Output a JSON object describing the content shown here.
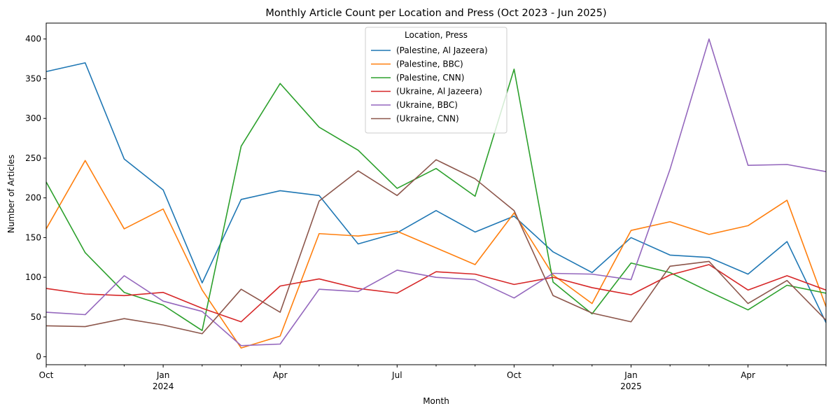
{
  "chart_data": {
    "type": "line",
    "title": "Monthly Article Count per Location and Press (Oct 2023 - Jun 2025)",
    "xlabel": "Month",
    "ylabel": "Number of Articles",
    "ylim": [
      -10,
      420
    ],
    "yticks": [
      0,
      50,
      100,
      150,
      200,
      250,
      300,
      350,
      400
    ],
    "x": [
      "2023-10",
      "2023-11",
      "2023-12",
      "2024-01",
      "2024-02",
      "2024-03",
      "2024-04",
      "2024-05",
      "2024-06",
      "2024-07",
      "2024-08",
      "2024-09",
      "2024-10",
      "2024-11",
      "2024-12",
      "2025-01",
      "2025-02",
      "2025-03",
      "2025-04",
      "2025-05",
      "2025-06"
    ],
    "xtick_labels": [
      {
        "x": "2023-10",
        "label": "Oct",
        "sub": ""
      },
      {
        "x": "2024-01",
        "label": "Jan",
        "sub": "2024"
      },
      {
        "x": "2024-04",
        "label": "Apr",
        "sub": ""
      },
      {
        "x": "2024-07",
        "label": "Jul",
        "sub": ""
      },
      {
        "x": "2024-10",
        "label": "Oct",
        "sub": ""
      },
      {
        "x": "2025-01",
        "label": "Jan",
        "sub": "2025"
      },
      {
        "x": "2025-04",
        "label": "Apr",
        "sub": ""
      }
    ],
    "legend": {
      "title": "Location, Press",
      "placement": "top-center"
    },
    "grid": false,
    "series": [
      {
        "name": "(Palestine, Al Jazeera)",
        "color": "#1f77b4",
        "values": [
          359,
          370,
          249,
          210,
          93,
          198,
          209,
          203,
          142,
          156,
          184,
          157,
          177,
          132,
          106,
          150,
          128,
          125,
          104,
          145,
          43
        ]
      },
      {
        "name": "(Palestine, BBC)",
        "color": "#ff7f0e",
        "values": [
          161,
          247,
          161,
          186,
          84,
          11,
          26,
          155,
          152,
          158,
          137,
          116,
          181,
          103,
          67,
          159,
          170,
          154,
          165,
          197,
          63
        ]
      },
      {
        "name": "(Palestine, CNN)",
        "color": "#2ca02c",
        "values": [
          220,
          131,
          81,
          65,
          33,
          265,
          344,
          289,
          260,
          212,
          237,
          202,
          362,
          94,
          54,
          118,
          106,
          82,
          59,
          90,
          80
        ]
      },
      {
        "name": "(Ukraine, Al Jazeera)",
        "color": "#d62728",
        "values": [
          86,
          79,
          77,
          81,
          61,
          44,
          89,
          98,
          86,
          80,
          107,
          104,
          91,
          100,
          87,
          78,
          103,
          116,
          84,
          102,
          84
        ]
      },
      {
        "name": "(Ukraine, BBC)",
        "color": "#9467bd",
        "values": [
          56,
          53,
          102,
          70,
          57,
          14,
          16,
          85,
          82,
          109,
          100,
          97,
          74,
          105,
          104,
          97,
          236,
          400,
          241,
          242,
          233
        ]
      },
      {
        "name": "(Ukraine, CNN)",
        "color": "#8c564b",
        "values": [
          39,
          38,
          48,
          40,
          29,
          85,
          56,
          196,
          234,
          203,
          248,
          224,
          184,
          77,
          55,
          44,
          114,
          120,
          67,
          96,
          46
        ]
      }
    ]
  }
}
